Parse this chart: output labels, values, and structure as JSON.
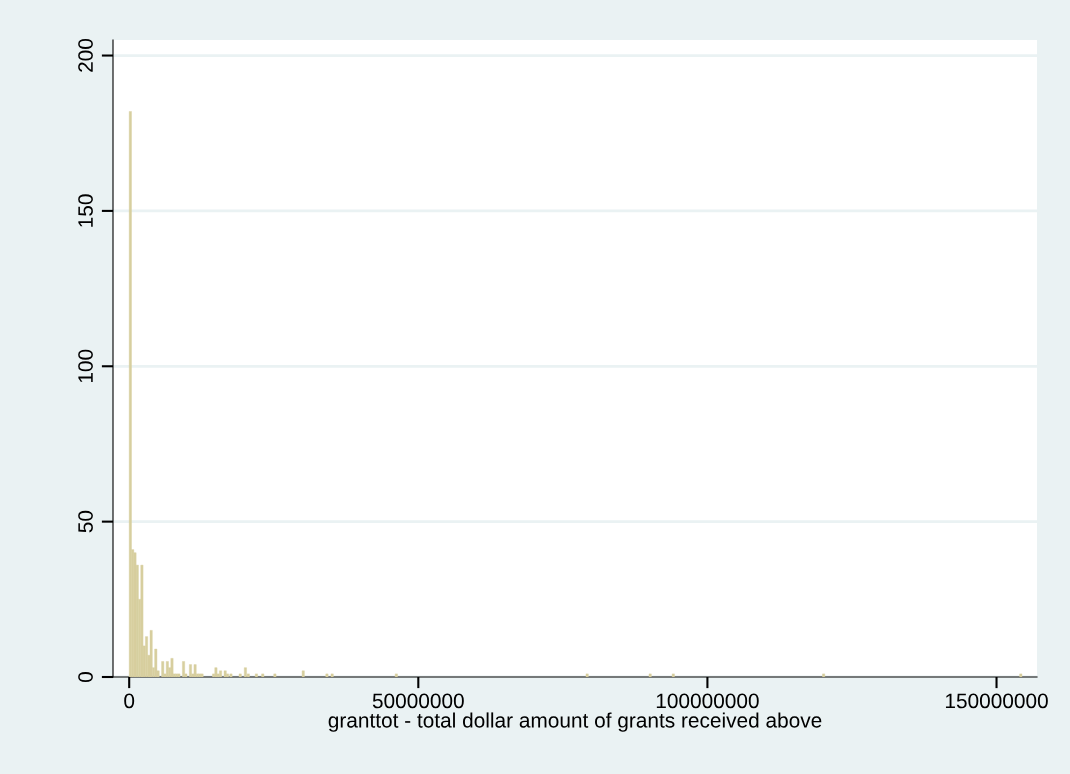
{
  "chart_data": {
    "type": "bar",
    "xlabel": "granttot - total dollar amount of grants received above",
    "x": [
      200000,
      600000,
      1000000,
      1400000,
      1800000,
      2200000,
      2600000,
      3000000,
      3400000,
      3800000,
      4200000,
      4600000,
      5000000,
      5800000,
      6200000,
      6600000,
      7000000,
      7400000,
      7800000,
      8200000,
      8600000,
      9400000,
      9800000,
      10600000,
      11000000,
      11400000,
      11800000,
      12200000,
      12600000,
      14600000,
      15000000,
      15400000,
      15800000,
      16600000,
      17000000,
      17600000,
      19200000,
      20100000,
      20600000,
      22000000,
      23100000,
      25200000,
      30100000,
      34200000,
      35100000,
      46200000,
      79200000,
      90100000,
      94100000,
      120100000,
      154200000
    ],
    "values": [
      182,
      41,
      40,
      36,
      25,
      36,
      10,
      13,
      7,
      15,
      3,
      9,
      2,
      5,
      1,
      5,
      3,
      6,
      1,
      1,
      1,
      5,
      1,
      4,
      1,
      4,
      1,
      1,
      1,
      1,
      3,
      1,
      2,
      2,
      1,
      1,
      1,
      3,
      1,
      1,
      1,
      1,
      2,
      1,
      1,
      1,
      1,
      1,
      1,
      1,
      1
    ],
    "color": "#d7cf9f",
    "xlim": [
      -2800000,
      157000000
    ],
    "xticks": [
      0,
      50000000,
      100000000,
      150000000
    ],
    "ylim": [
      0,
      205
    ],
    "yticks": [
      0,
      50,
      100,
      150,
      200
    ],
    "grid": "y"
  }
}
